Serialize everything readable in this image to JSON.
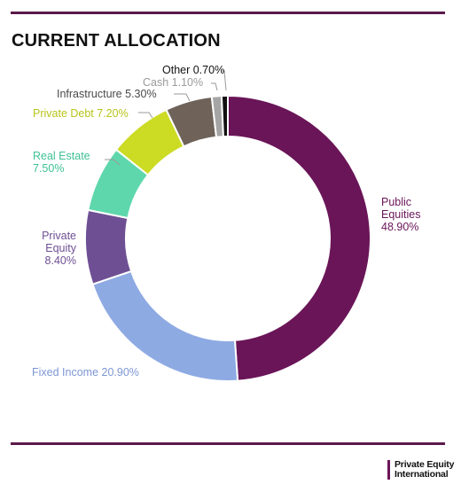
{
  "title": "CURRENT ALLOCATION",
  "brand": {
    "line1": "Private Equity",
    "line2": "International"
  },
  "chart_data": {
    "type": "pie",
    "variant": "donut",
    "title": "CURRENT ALLOCATION",
    "legend": "none",
    "slices": [
      {
        "label": "Public Equities",
        "value": 48.9,
        "display": "48.90%",
        "color": "#6a1558",
        "label_color": "#6a1558"
      },
      {
        "label": "Fixed Income",
        "value": 20.9,
        "display": "20.90%",
        "color": "#8eaae3",
        "label_color": "#7d97d4"
      },
      {
        "label": "Private Equity",
        "value": 8.4,
        "display": "8.40%",
        "color": "#6e4f94",
        "label_color": "#6e4f94"
      },
      {
        "label": "Real Estate",
        "value": 7.5,
        "display": "7.50%",
        "color": "#5fd7ad",
        "label_color": "#3fc195"
      },
      {
        "label": "Private Debt",
        "value": 7.2,
        "display": "7.20%",
        "color": "#ccdb23",
        "label_color": "#b7c41a"
      },
      {
        "label": "Infrastructure",
        "value": 5.3,
        "display": "5.30%",
        "color": "#6e6259",
        "label_color": "#4a4a4a"
      },
      {
        "label": "Cash",
        "value": 1.1,
        "display": "1.10%",
        "color": "#a5a5a5",
        "label_color": "#9a9a9a"
      },
      {
        "label": "Other",
        "value": 0.7,
        "display": "0.70%",
        "color": "#111111",
        "label_color": "#111111"
      }
    ]
  }
}
